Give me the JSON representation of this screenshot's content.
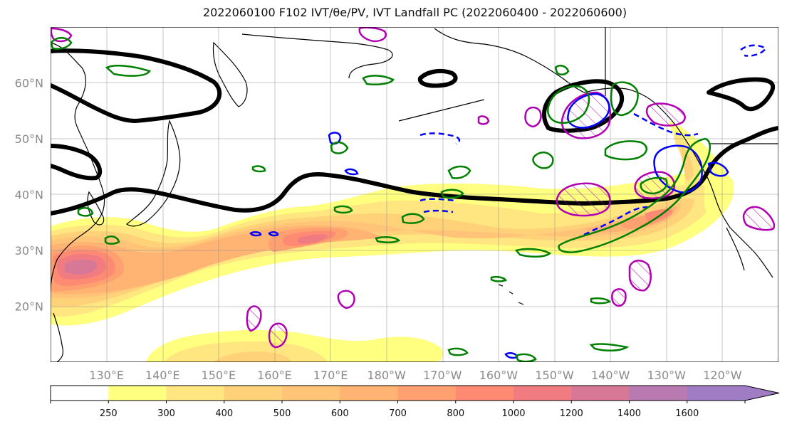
{
  "title": "2022060100 F102 IVT/θe/PV, IVT Landfall PC (2022060400 - 2022060600)",
  "map": {
    "projection": "PlateCarree",
    "lon_range": [
      120,
      250
    ],
    "lat_range": [
      10,
      70
    ],
    "lat_ticks": [
      {
        "value": 20,
        "label": "20°N"
      },
      {
        "value": 30,
        "label": "30°N"
      },
      {
        "value": 40,
        "label": "40°N"
      },
      {
        "value": 50,
        "label": "50°N"
      },
      {
        "value": 60,
        "label": "60°N"
      }
    ],
    "lon_ticks": [
      {
        "value": 130,
        "label": "130°E"
      },
      {
        "value": 140,
        "label": "140°E"
      },
      {
        "value": 150,
        "label": "150°E"
      },
      {
        "value": 160,
        "label": "160°E"
      },
      {
        "value": 170,
        "label": "170°E"
      },
      {
        "value": 180,
        "label": "180°W"
      },
      {
        "value": 190,
        "label": "170°W"
      },
      {
        "value": 200,
        "label": "160°W"
      },
      {
        "value": 210,
        "label": "150°W"
      },
      {
        "value": 220,
        "label": "140°W"
      },
      {
        "value": 230,
        "label": "130°W"
      },
      {
        "value": 240,
        "label": "120°W"
      }
    ],
    "gridlines": true,
    "contour_colors": {
      "theta_e": "#000000",
      "pv_positive": "#008000",
      "pv_negative": "#0000ff",
      "landfall_pc": "#b000b0"
    }
  },
  "colorbar": {
    "levels": [
      {
        "label": "250",
        "color": "#ffff80"
      },
      {
        "label": "300",
        "color": "#ffe680"
      },
      {
        "label": "400",
        "color": "#ffd27a"
      },
      {
        "label": "500",
        "color": "#ffc478"
      },
      {
        "label": "600",
        "color": "#ffb474"
      },
      {
        "label": "700",
        "color": "#ffa070"
      },
      {
        "label": "800",
        "color": "#ff8a74"
      },
      {
        "label": "1000",
        "color": "#f07c82"
      },
      {
        "label": "1200",
        "color": "#d67896"
      },
      {
        "label": "1400",
        "color": "#b87ab0"
      },
      {
        "label": "1600",
        "color": "#a07cc4"
      }
    ],
    "first_color": "#ffffff",
    "extend": "max"
  }
}
